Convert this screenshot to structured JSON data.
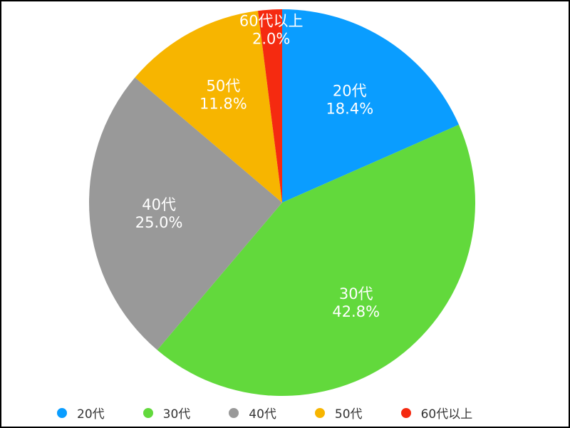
{
  "chart_data": {
    "type": "pie",
    "categories": [
      "20代",
      "30代",
      "40代",
      "50代",
      "60代以上"
    ],
    "values": [
      18.4,
      42.8,
      25.0,
      11.8,
      2.0
    ],
    "value_labels": [
      "18.4%",
      "42.8%",
      "25.0%",
      "11.8%",
      "2.0%"
    ],
    "colors": [
      "#0a9dff",
      "#62d93c",
      "#999999",
      "#f7b500",
      "#f52a10"
    ],
    "start": "12 o'clock",
    "direction": "clockwise",
    "legend_position": "bottom"
  }
}
